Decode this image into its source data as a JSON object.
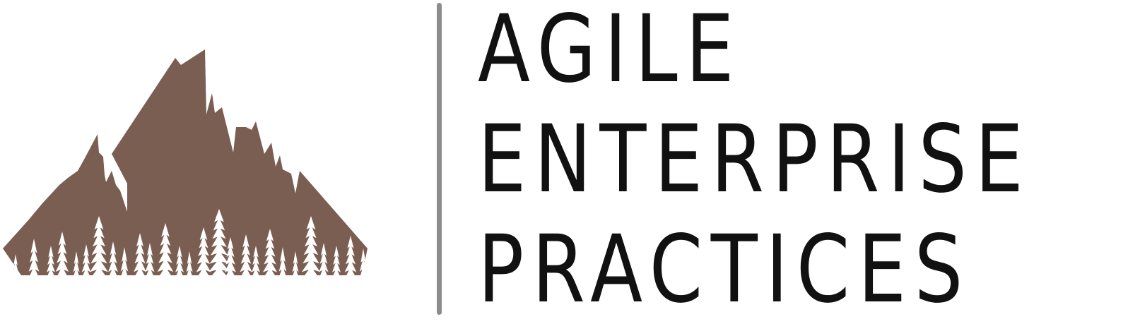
{
  "logo": {
    "lines": [
      "AGILE",
      "ENTERPRISE",
      "PRACTICES"
    ],
    "colors": {
      "mountain": "#7B5E52",
      "divider": "#8C8C8C",
      "text": "#111111",
      "trees": "#FFFFFF"
    },
    "icons": {
      "emblem": "mountain-with-pine-forest-icon"
    }
  }
}
